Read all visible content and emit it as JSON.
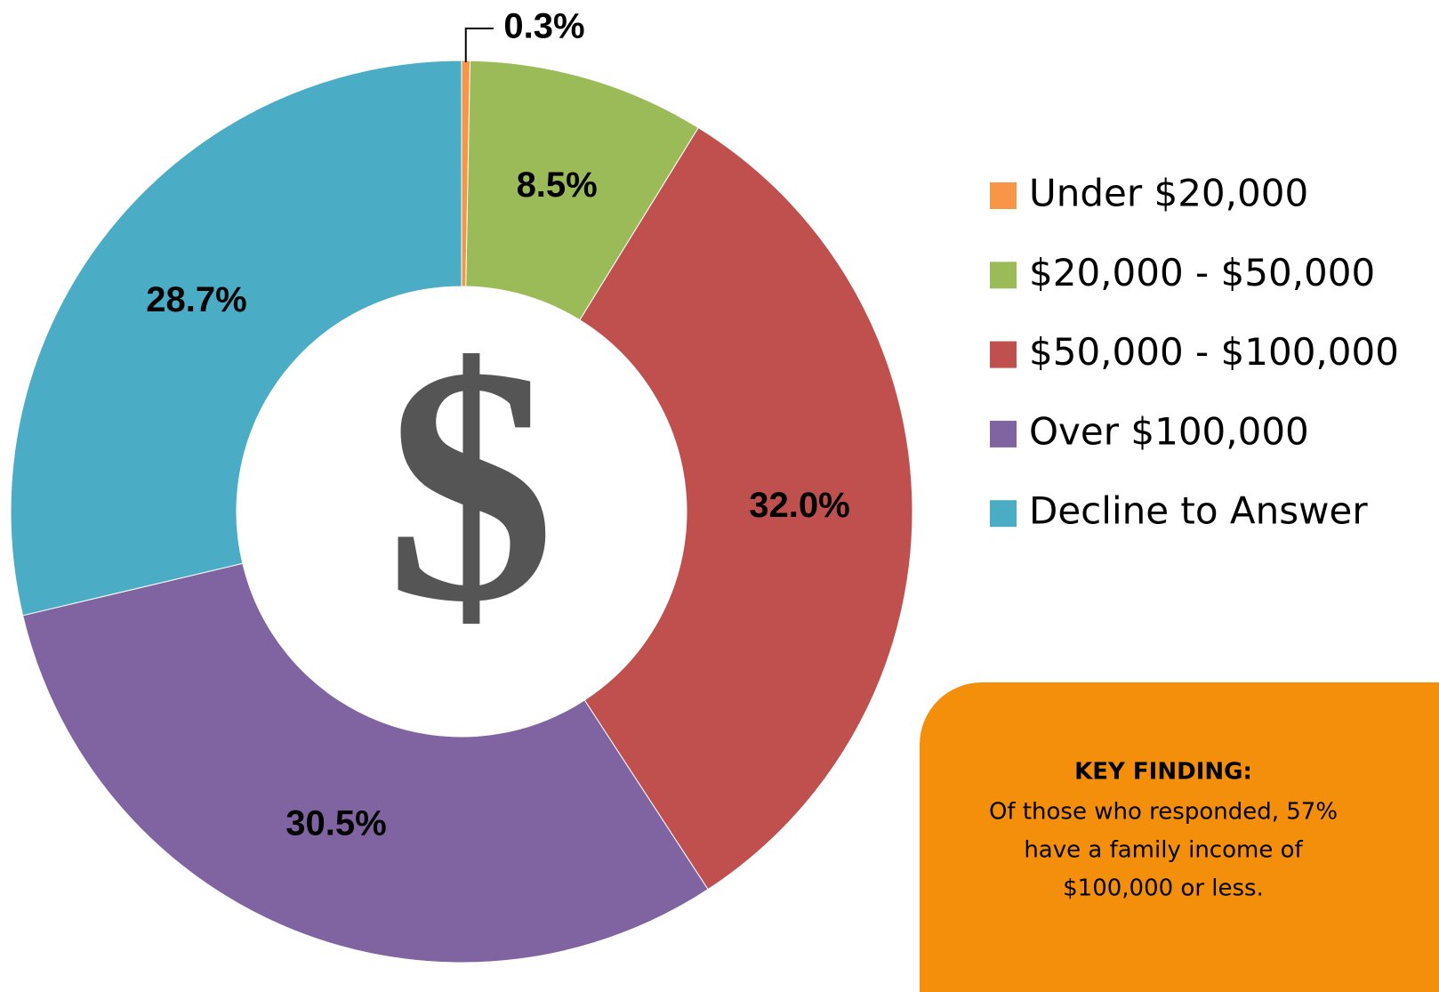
{
  "chart_data": {
    "type": "donut",
    "categories": [
      "Under $20,000",
      "$20,000 - $50,000",
      "$50,000 - $100,000",
      "Over $100,000",
      "Decline to Answer"
    ],
    "values": [
      0.3,
      8.5,
      32.0,
      30.5,
      28.7
    ],
    "value_labels": [
      "0.3%",
      "8.5%",
      "32.0%",
      "30.5%",
      "28.7%"
    ],
    "colors": [
      "#f79646",
      "#9bbb59",
      "#c0504d",
      "#8064a2",
      "#4bacc6"
    ],
    "center_label": "$",
    "legend": "right"
  },
  "key_finding": {
    "title": "KEY FINDING:",
    "lines": [
      "Of those who responded, 57%",
      "have a family income of",
      "$100,000 or less."
    ]
  }
}
